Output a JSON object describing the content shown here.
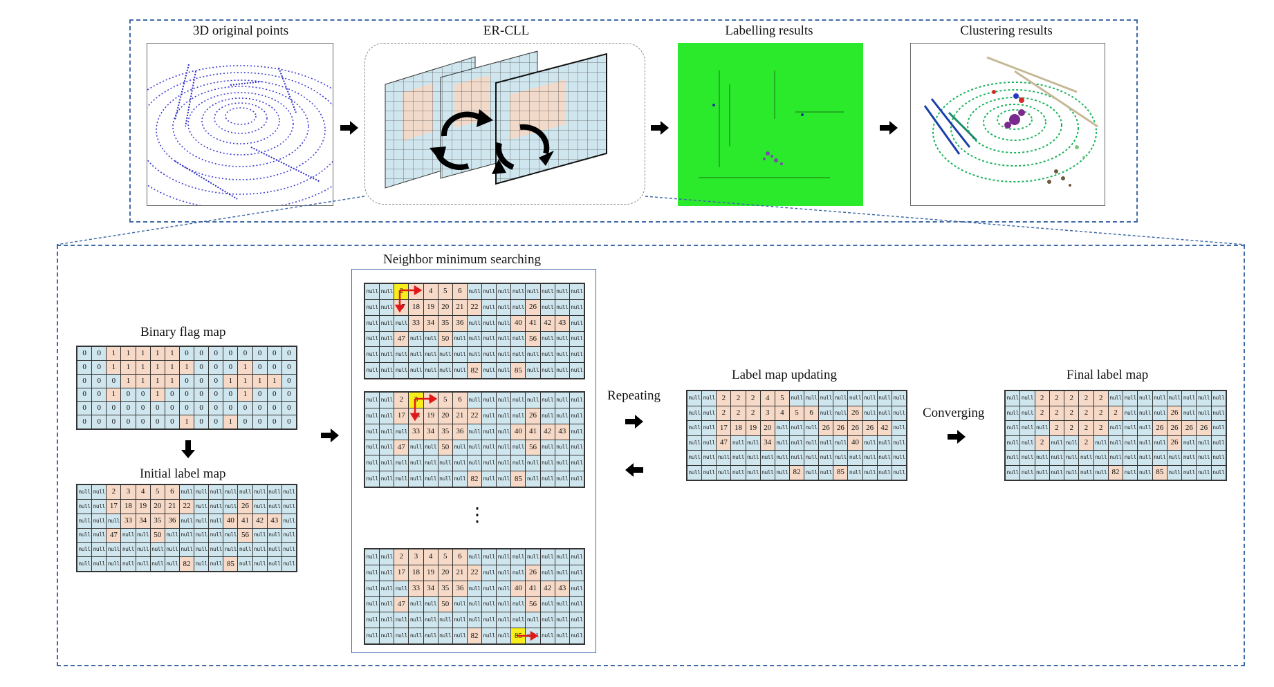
{
  "top": {
    "titles": [
      "3D original points",
      "ER-CLL",
      "Labelling results",
      "Clustering results"
    ]
  },
  "bottom": {
    "binary_title": "Binary flag map",
    "initial_title": "Initial label map",
    "nms_title": "Neighbor minimum searching",
    "repeating": "Repeating",
    "update_title": "Label map updating",
    "converging": "Converging",
    "final_title": "Final label map",
    "ellipsis": "⋮"
  },
  "colors": {
    "dash": "#3f6aa8",
    "cell": "#cfe6ee",
    "highlight": "#f6d9c6",
    "search": "#f7ee1b",
    "label_green": "#2bea2b",
    "trace": "#e01818"
  },
  "maps": {
    "binary": [
      [
        "0",
        "0",
        "1",
        "1",
        "1",
        "1",
        "1",
        "0",
        "0",
        "0",
        "0",
        "0",
        "0",
        "0",
        "0"
      ],
      [
        "0",
        "0",
        "1",
        "1",
        "1",
        "1",
        "1",
        "1",
        "0",
        "0",
        "0",
        "1",
        "0",
        "0",
        "0"
      ],
      [
        "0",
        "0",
        "0",
        "1",
        "1",
        "1",
        "1",
        "0",
        "0",
        "0",
        "1",
        "1",
        "1",
        "1",
        "0"
      ],
      [
        "0",
        "0",
        "1",
        "0",
        "0",
        "1",
        "0",
        "0",
        "0",
        "0",
        "0",
        "1",
        "0",
        "0",
        "0"
      ],
      [
        "0",
        "0",
        "0",
        "0",
        "0",
        "0",
        "0",
        "0",
        "0",
        "0",
        "0",
        "0",
        "0",
        "0",
        "0"
      ],
      [
        "0",
        "0",
        "0",
        "0",
        "0",
        "0",
        "0",
        "1",
        "0",
        "0",
        "1",
        "0",
        "0",
        "0",
        "0"
      ]
    ],
    "initial": [
      [
        "null",
        "null",
        "2",
        "3",
        "4",
        "5",
        "6",
        "null",
        "null",
        "null",
        "null",
        "null",
        "null",
        "null",
        "null"
      ],
      [
        "null",
        "null",
        "17",
        "18",
        "19",
        "20",
        "21",
        "22",
        "null",
        "null",
        "null",
        "26",
        "null",
        "null",
        "null"
      ],
      [
        "null",
        "null",
        "null",
        "33",
        "34",
        "35",
        "36",
        "null",
        "null",
        "null",
        "40",
        "41",
        "42",
        "43",
        "null"
      ],
      [
        "null",
        "null",
        "47",
        "null",
        "null",
        "50",
        "null",
        "null",
        "null",
        "null",
        "null",
        "56",
        "null",
        "null",
        "null"
      ],
      [
        "null",
        "null",
        "null",
        "null",
        "null",
        "null",
        "null",
        "null",
        "null",
        "null",
        "null",
        "null",
        "null",
        "null",
        "null"
      ],
      [
        "null",
        "null",
        "null",
        "null",
        "null",
        "null",
        "null",
        "82",
        "null",
        "null",
        "85",
        "null",
        "null",
        "null",
        "null"
      ]
    ],
    "search1": [
      [
        "null",
        "null",
        "2",
        "3",
        "4",
        "5",
        "6",
        "null",
        "null",
        "null",
        "null",
        "null",
        "null",
        "null",
        "null"
      ],
      [
        "null",
        "null",
        "17",
        "18",
        "19",
        "20",
        "21",
        "22",
        "null",
        "null",
        "null",
        "26",
        "null",
        "null",
        "null"
      ],
      [
        "null",
        "null",
        "null",
        "33",
        "34",
        "35",
        "36",
        "null",
        "null",
        "null",
        "40",
        "41",
        "42",
        "43",
        "null"
      ],
      [
        "null",
        "null",
        "47",
        "null",
        "null",
        "50",
        "null",
        "null",
        "null",
        "null",
        "null",
        "56",
        "null",
        "null",
        "null"
      ],
      [
        "null",
        "null",
        "null",
        "null",
        "null",
        "null",
        "null",
        "null",
        "null",
        "null",
        "null",
        "null",
        "null",
        "null",
        "null"
      ],
      [
        "null",
        "null",
        "null",
        "null",
        "null",
        "null",
        "null",
        "82",
        "null",
        "null",
        "85",
        "null",
        "null",
        "null",
        "null"
      ]
    ],
    "search2": [
      [
        "null",
        "null",
        "2",
        "3",
        "4",
        "5",
        "6",
        "null",
        "null",
        "null",
        "null",
        "null",
        "null",
        "null",
        "null"
      ],
      [
        "null",
        "null",
        "17",
        "18",
        "19",
        "20",
        "21",
        "22",
        "null",
        "null",
        "null",
        "26",
        "null",
        "null",
        "null"
      ],
      [
        "null",
        "null",
        "null",
        "33",
        "34",
        "35",
        "36",
        "null",
        "null",
        "null",
        "40",
        "41",
        "42",
        "43",
        "null"
      ],
      [
        "null",
        "null",
        "47",
        "null",
        "null",
        "50",
        "null",
        "null",
        "null",
        "null",
        "null",
        "56",
        "null",
        "null",
        "null"
      ],
      [
        "null",
        "null",
        "null",
        "null",
        "null",
        "null",
        "null",
        "null",
        "null",
        "null",
        "null",
        "null",
        "null",
        "null",
        "null"
      ],
      [
        "null",
        "null",
        "null",
        "null",
        "null",
        "null",
        "null",
        "82",
        "null",
        "null",
        "85",
        "null",
        "null",
        "null",
        "null"
      ]
    ],
    "search3": [
      [
        "null",
        "null",
        "2",
        "3",
        "4",
        "5",
        "6",
        "null",
        "null",
        "null",
        "null",
        "null",
        "null",
        "null",
        "null"
      ],
      [
        "null",
        "null",
        "17",
        "18",
        "19",
        "20",
        "21",
        "22",
        "null",
        "null",
        "null",
        "26",
        "null",
        "null",
        "null"
      ],
      [
        "null",
        "null",
        "null",
        "33",
        "34",
        "35",
        "36",
        "null",
        "null",
        "null",
        "40",
        "41",
        "42",
        "43",
        "null"
      ],
      [
        "null",
        "null",
        "47",
        "null",
        "null",
        "50",
        "null",
        "null",
        "null",
        "null",
        "null",
        "56",
        "null",
        "null",
        "null"
      ],
      [
        "null",
        "null",
        "null",
        "null",
        "null",
        "null",
        "null",
        "null",
        "null",
        "null",
        "null",
        "null",
        "null",
        "null",
        "null"
      ],
      [
        "null",
        "null",
        "null",
        "null",
        "null",
        "null",
        "null",
        "82",
        "null",
        "null",
        "85",
        "null",
        "null",
        "null",
        "null"
      ]
    ],
    "update": [
      [
        "null",
        "null",
        "2",
        "2",
        "2",
        "4",
        "5",
        "null",
        "null",
        "null",
        "null",
        "null",
        "null",
        "null",
        "null"
      ],
      [
        "null",
        "null",
        "2",
        "2",
        "2",
        "3",
        "4",
        "5",
        "6",
        "null",
        "null",
        "26",
        "null",
        "null",
        "null"
      ],
      [
        "null",
        "null",
        "17",
        "18",
        "19",
        "20",
        "null",
        "null",
        "null",
        "26",
        "26",
        "26",
        "26",
        "42",
        "null"
      ],
      [
        "null",
        "null",
        "47",
        "null",
        "null",
        "34",
        "null",
        "null",
        "null",
        "null",
        "null",
        "40",
        "null",
        "null",
        "null"
      ],
      [
        "null",
        "null",
        "null",
        "null",
        "null",
        "null",
        "null",
        "null",
        "null",
        "null",
        "null",
        "null",
        "null",
        "null",
        "null"
      ],
      [
        "null",
        "null",
        "null",
        "null",
        "null",
        "null",
        "null",
        "82",
        "null",
        "null",
        "85",
        "null",
        "null",
        "null",
        "null"
      ]
    ],
    "final": [
      [
        "null",
        "null",
        "2",
        "2",
        "2",
        "2",
        "2",
        "null",
        "null",
        "null",
        "null",
        "null",
        "null",
        "null",
        "null"
      ],
      [
        "null",
        "null",
        "2",
        "2",
        "2",
        "2",
        "2",
        "2",
        "null",
        "null",
        "null",
        "26",
        "null",
        "null",
        "null"
      ],
      [
        "null",
        "null",
        "null",
        "2",
        "2",
        "2",
        "2",
        "null",
        "null",
        "null",
        "26",
        "26",
        "26",
        "26",
        "null"
      ],
      [
        "null",
        "null",
        "2",
        "null",
        "null",
        "2",
        "null",
        "null",
        "null",
        "null",
        "null",
        "26",
        "null",
        "null",
        "null"
      ],
      [
        "null",
        "null",
        "null",
        "null",
        "null",
        "null",
        "null",
        "null",
        "null",
        "null",
        "null",
        "null",
        "null",
        "null",
        "null"
      ],
      [
        "null",
        "null",
        "null",
        "null",
        "null",
        "null",
        "null",
        "82",
        "null",
        "null",
        "85",
        "null",
        "null",
        "null",
        "null"
      ]
    ]
  }
}
